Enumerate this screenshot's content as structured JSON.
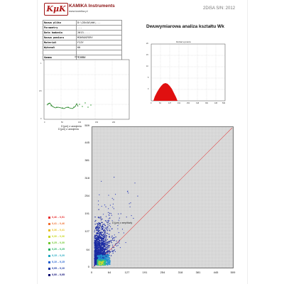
{
  "header": {
    "logo_text": "KμK",
    "company": "KAMIKA Instruments",
    "website": "www.kamika.pl",
    "serial": "2DiSA S/N: 2012"
  },
  "info_table": [
    {
      "key": "Nazwa pliku",
      "value": "D:\\2DiSA\\Wk\\..."
    },
    {
      "key": "Parametry",
      "value": "..."
    },
    {
      "key": "Data badania",
      "value": "2013-..."
    },
    {
      "key": "Nazwa pomiaru",
      "value": "MIKROSFERY"
    },
    {
      "key": "Materiał",
      "value": "FIZY"
    },
    {
      "key": "Wykonał",
      "value": "KK"
    },
    {
      "key": "",
      "value": ""
    },
    {
      "key": "Gamma",
      "value": "1,000"
    }
  ],
  "main_title": "Dwuwymiarowa analiza kształtu Wk",
  "small_chart_left": {
    "title": "Wk Dist = f(...)",
    "caption": "D [μm] z uzwojenia",
    "y_ticks": [
      "1",
      "0.5",
      "0"
    ],
    "x_ticks": [
      "0",
      "50",
      "100",
      "150",
      "200"
    ]
  },
  "small_chart_right": {
    "title": "Rozkład wymiarów",
    "y_ticks": [
      "20",
      "15",
      "10",
      "5",
      "0"
    ],
    "x_ticks": [
      "0",
      "64",
      "127",
      "191",
      "254",
      "318",
      "381",
      "445",
      "509"
    ]
  },
  "scatter": {
    "top_label": "509",
    "caption_left": "D [μm] z uzwojenia",
    "caption_bottom": "D [μm] z amplitudy",
    "y_ticks": [
      "445",
      "381",
      "318",
      "254",
      "191",
      "127",
      "64",
      "0"
    ],
    "x_ticks": [
      "0",
      "64",
      "127",
      "191",
      "254",
      "318",
      "381",
      "445",
      "509"
    ]
  },
  "legend": [
    {
      "label": "0,46 – 0,51",
      "color": "#e83030"
    },
    {
      "label": "0,41 – 0,46",
      "color": "#f07030"
    },
    {
      "label": "0,36 – 0,41",
      "color": "#e8c020"
    },
    {
      "label": "0,30 – 0,36",
      "color": "#c8d820"
    },
    {
      "label": "0,25 – 0,30",
      "color": "#70c830"
    },
    {
      "label": "0,20 – 0,25",
      "color": "#20b060"
    },
    {
      "label": "0,15 – 0,20",
      "color": "#20a8c0"
    },
    {
      "label": "0,10 – 0,15",
      "color": "#2060d0"
    },
    {
      "label": "0,05 – 0,10",
      "color": "#1030a0"
    },
    {
      "label": "0,00 – 0,05",
      "color": "#000070"
    }
  ]
}
